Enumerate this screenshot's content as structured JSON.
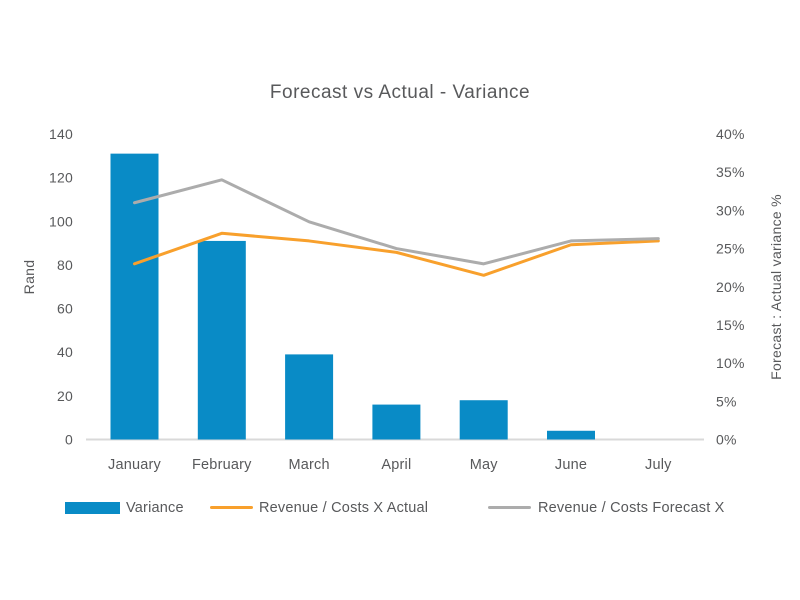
{
  "chart_data": {
    "type": "bar+line",
    "title": "Forecast vs Actual - Variance",
    "categories": [
      "January",
      "February",
      "March",
      "April",
      "May",
      "June",
      "July"
    ],
    "bar_series": {
      "name": "Variance",
      "axis": "left",
      "color": "#098BC6",
      "values": [
        131,
        91,
        39,
        16,
        18,
        4,
        0
      ]
    },
    "line_series": [
      {
        "name": "Revenue / Costs X Actual",
        "axis": "right",
        "color": "#F8A02C",
        "values": [
          23,
          27,
          26,
          24.5,
          21.5,
          25.5,
          26
        ]
      },
      {
        "name": "Revenue / Costs Forecast X",
        "axis": "right",
        "color": "#ACACAC",
        "values": [
          31,
          34,
          28.5,
          25,
          23,
          26,
          26.3
        ]
      }
    ],
    "y_left": {
      "title": "Rand",
      "min": 0,
      "max": 140,
      "step": 20,
      "ticks": [
        "0",
        "20",
        "40",
        "60",
        "80",
        "100",
        "120",
        "140"
      ]
    },
    "y_right": {
      "title": "Forecast : Actual variance %",
      "min": 0,
      "max": 40,
      "step": 5,
      "ticks": [
        "0%",
        "5%",
        "10%",
        "15%",
        "20%",
        "25%",
        "30%",
        "35%",
        "40%"
      ]
    },
    "xlabel": "",
    "grid": "off",
    "legend_position": "bottom",
    "axis_line_color": "#D9D9D9",
    "text_color": "#58595B"
  }
}
